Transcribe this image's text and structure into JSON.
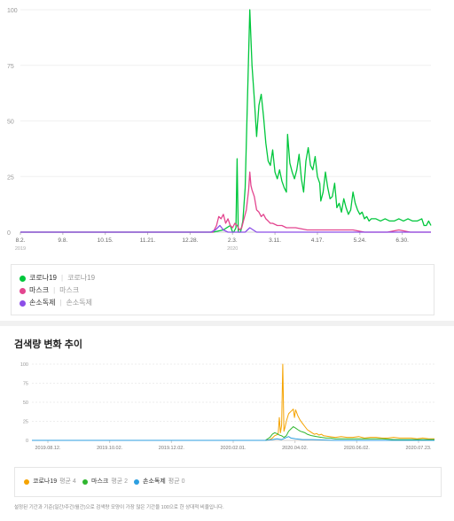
{
  "top_chart": {
    "legend": [
      {
        "name": "코로나19",
        "terms": "코로나19",
        "color": "#00c73c"
      },
      {
        "name": "마스크",
        "terms": "마스크",
        "color": "#e3458f"
      },
      {
        "name": "손소독제",
        "terms": "손소독제",
        "color": "#8c4ee8"
      }
    ]
  },
  "bottom_section": {
    "title": "검색량 변화 추이",
    "legend": [
      {
        "name": "코로나19",
        "avg": "평균 4",
        "color": "#f5a300"
      },
      {
        "name": "마스크",
        "avg": "평균 2",
        "color": "#2fb62f"
      },
      {
        "name": "손소독제",
        "avg": "평균 0",
        "color": "#2d9fe0"
      }
    ],
    "footnote": "설정된 기간과 기준(일간/주간/월간)으로 검색량 모양이 가장 많은 기간을 100으로 한 상대적 비율입니다."
  },
  "chart_data": [
    {
      "type": "line",
      "title": "",
      "ylim": [
        0,
        100
      ],
      "yticks": [
        "0",
        "25",
        "50",
        "75",
        "100"
      ],
      "xticks": [
        {
          "label": "8.2.",
          "year": "2019",
          "x": 0
        },
        {
          "label": "9.8.",
          "x": 37
        },
        {
          "label": "10.15.",
          "x": 74
        },
        {
          "label": "11.21.",
          "x": 111
        },
        {
          "label": "12.28.",
          "x": 148
        },
        {
          "label": "2.3.",
          "year": "2020",
          "x": 185
        },
        {
          "label": "3.11.",
          "x": 222
        },
        {
          "label": "4.17.",
          "x": 259
        },
        {
          "label": "5.24.",
          "x": 296
        },
        {
          "label": "6.30.",
          "x": 333
        }
      ],
      "xrange": [
        0,
        358
      ],
      "series": [
        {
          "name": "코로나19",
          "color": "#00c73c",
          "points": [
            [
              0,
              0
            ],
            [
              168,
              0
            ],
            [
              177,
              1
            ],
            [
              183,
              3
            ],
            [
              185,
              0
            ],
            [
              186,
              0
            ],
            [
              188,
              2
            ],
            [
              189,
              33
            ],
            [
              190,
              0
            ],
            [
              192,
              0
            ],
            [
              194,
              5
            ],
            [
              196,
              20
            ],
            [
              198,
              60
            ],
            [
              200,
              100
            ],
            [
              202,
              75
            ],
            [
              204,
              60
            ],
            [
              206,
              43
            ],
            [
              208,
              57
            ],
            [
              210,
              62
            ],
            [
              212,
              52
            ],
            [
              214,
              40
            ],
            [
              216,
              32
            ],
            [
              218,
              30
            ],
            [
              220,
              37
            ],
            [
              222,
              27
            ],
            [
              224,
              24
            ],
            [
              226,
              28
            ],
            [
              228,
              23
            ],
            [
              230,
              20
            ],
            [
              232,
              18
            ],
            [
              233,
              44
            ],
            [
              235,
              31
            ],
            [
              237,
              27
            ],
            [
              239,
              24
            ],
            [
              241,
              28
            ],
            [
              243,
              35
            ],
            [
              245,
              24
            ],
            [
              247,
              18
            ],
            [
              249,
              32
            ],
            [
              251,
              38
            ],
            [
              253,
              30
            ],
            [
              255,
              28
            ],
            [
              257,
              34
            ],
            [
              259,
              25
            ],
            [
              261,
              22
            ],
            [
              262,
              14
            ],
            [
              264,
              18
            ],
            [
              266,
              27
            ],
            [
              268,
              20
            ],
            [
              270,
              15
            ],
            [
              272,
              16
            ],
            [
              274,
              22
            ],
            [
              276,
              11
            ],
            [
              278,
              13
            ],
            [
              280,
              9
            ],
            [
              282,
              15
            ],
            [
              284,
              11
            ],
            [
              286,
              8
            ],
            [
              288,
              10
            ],
            [
              290,
              18
            ],
            [
              292,
              13
            ],
            [
              294,
              10
            ],
            [
              296,
              8
            ],
            [
              298,
              9
            ],
            [
              300,
              6
            ],
            [
              302,
              7
            ],
            [
              304,
              5
            ],
            [
              306,
              6
            ],
            [
              310,
              6
            ],
            [
              314,
              5
            ],
            [
              318,
              6
            ],
            [
              322,
              5
            ],
            [
              326,
              5
            ],
            [
              330,
              6
            ],
            [
              334,
              5
            ],
            [
              338,
              6
            ],
            [
              342,
              5
            ],
            [
              346,
              5
            ],
            [
              350,
              6
            ],
            [
              352,
              3
            ],
            [
              354,
              3
            ],
            [
              356,
              5
            ],
            [
              358,
              3
            ]
          ]
        },
        {
          "name": "마스크",
          "color": "#e3458f",
          "points": [
            [
              0,
              0
            ],
            [
              160,
              0
            ],
            [
              168,
              0
            ],
            [
              171,
              3
            ],
            [
              173,
              7
            ],
            [
              175,
              6
            ],
            [
              177,
              8
            ],
            [
              179,
              4
            ],
            [
              181,
              6
            ],
            [
              183,
              3
            ],
            [
              185,
              2
            ],
            [
              187,
              4
            ],
            [
              189,
              3
            ],
            [
              191,
              1
            ],
            [
              193,
              2
            ],
            [
              195,
              6
            ],
            [
              197,
              10
            ],
            [
              199,
              19
            ],
            [
              200,
              27
            ],
            [
              201,
              21
            ],
            [
              202,
              19
            ],
            [
              204,
              16
            ],
            [
              206,
              10
            ],
            [
              208,
              9
            ],
            [
              210,
              7
            ],
            [
              212,
              8
            ],
            [
              214,
              6
            ],
            [
              216,
              5
            ],
            [
              218,
              4
            ],
            [
              220,
              4
            ],
            [
              224,
              3
            ],
            [
              228,
              3
            ],
            [
              232,
              2
            ],
            [
              240,
              2
            ],
            [
              250,
              1
            ],
            [
              260,
              1
            ],
            [
              270,
              1
            ],
            [
              290,
              1
            ],
            [
              300,
              0
            ],
            [
              320,
              0
            ],
            [
              330,
              1
            ],
            [
              340,
              0
            ],
            [
              358,
              0
            ]
          ]
        },
        {
          "name": "손소독제",
          "color": "#8c4ee8",
          "points": [
            [
              0,
              0
            ],
            [
              166,
              0
            ],
            [
              170,
              1
            ],
            [
              174,
              3
            ],
            [
              177,
              1
            ],
            [
              181,
              0
            ],
            [
              196,
              0
            ],
            [
              200,
              2
            ],
            [
              203,
              1
            ],
            [
              206,
              0
            ],
            [
              358,
              0
            ]
          ]
        }
      ]
    },
    {
      "type": "line",
      "title": "",
      "ylim": [
        0,
        100
      ],
      "yticks": [
        "0",
        "25",
        "50",
        "75",
        "100"
      ],
      "xticks": [
        "2019.08.12.",
        "2019.10.02.",
        "2019.12.02.",
        "2020.02.01.",
        "2020.04.02.",
        "2020.06.02.",
        "2020.07.23."
      ],
      "xrange": [
        0,
        345
      ],
      "series": [
        {
          "name": "코로나19",
          "color": "#f5a300",
          "points": [
            [
              0,
              0
            ],
            [
              200,
              0
            ],
            [
              204,
              1
            ],
            [
              206,
              3
            ],
            [
              208,
              6
            ],
            [
              211,
              8
            ],
            [
              212,
              30
            ],
            [
              213,
              10
            ],
            [
              214,
              20
            ],
            [
              215,
              100
            ],
            [
              216,
              12
            ],
            [
              217,
              18
            ],
            [
              218,
              25
            ],
            [
              220,
              35
            ],
            [
              222,
              38
            ],
            [
              224,
              41
            ],
            [
              225,
              30
            ],
            [
              226,
              40
            ],
            [
              228,
              32
            ],
            [
              230,
              26
            ],
            [
              232,
              22
            ],
            [
              234,
              18
            ],
            [
              236,
              14
            ],
            [
              238,
              12
            ],
            [
              240,
              10
            ],
            [
              242,
              8
            ],
            [
              244,
              9
            ],
            [
              246,
              7
            ],
            [
              248,
              8
            ],
            [
              250,
              6
            ],
            [
              255,
              5
            ],
            [
              260,
              4
            ],
            [
              265,
              5
            ],
            [
              270,
              4
            ],
            [
              275,
              4
            ],
            [
              280,
              5
            ],
            [
              285,
              3
            ],
            [
              290,
              4
            ],
            [
              295,
              4
            ],
            [
              300,
              3
            ],
            [
              305,
              3
            ],
            [
              310,
              4
            ],
            [
              315,
              3
            ],
            [
              320,
              3
            ],
            [
              325,
              3
            ],
            [
              330,
              2
            ],
            [
              335,
              3
            ],
            [
              340,
              2
            ],
            [
              345,
              2
            ]
          ]
        },
        {
          "name": "마스크",
          "color": "#2fb62f",
          "points": [
            [
              0,
              0
            ],
            [
              200,
              0
            ],
            [
              204,
              4
            ],
            [
              206,
              8
            ],
            [
              208,
              10
            ],
            [
              210,
              9
            ],
            [
              212,
              7
            ],
            [
              214,
              6
            ],
            [
              216,
              4
            ],
            [
              218,
              6
            ],
            [
              220,
              12
            ],
            [
              222,
              15
            ],
            [
              224,
              18
            ],
            [
              226,
              16
            ],
            [
              228,
              14
            ],
            [
              230,
              12
            ],
            [
              232,
              11
            ],
            [
              234,
              10
            ],
            [
              236,
              8
            ],
            [
              238,
              7
            ],
            [
              240,
              6
            ],
            [
              244,
              5
            ],
            [
              248,
              4
            ],
            [
              252,
              3
            ],
            [
              256,
              3
            ],
            [
              260,
              2
            ],
            [
              270,
              2
            ],
            [
              280,
              2
            ],
            [
              290,
              2
            ],
            [
              300,
              2
            ],
            [
              310,
              1
            ],
            [
              320,
              1
            ],
            [
              330,
              1
            ],
            [
              345,
              1
            ]
          ]
        },
        {
          "name": "손소독제",
          "color": "#2d9fe0",
          "points": [
            [
              0,
              0
            ],
            [
              200,
              0
            ],
            [
              206,
              1
            ],
            [
              210,
              2
            ],
            [
              214,
              1
            ],
            [
              220,
              5
            ],
            [
              222,
              3
            ],
            [
              226,
              2
            ],
            [
              232,
              1
            ],
            [
              240,
              1
            ],
            [
              260,
              0
            ],
            [
              345,
              0
            ]
          ]
        }
      ]
    }
  ]
}
